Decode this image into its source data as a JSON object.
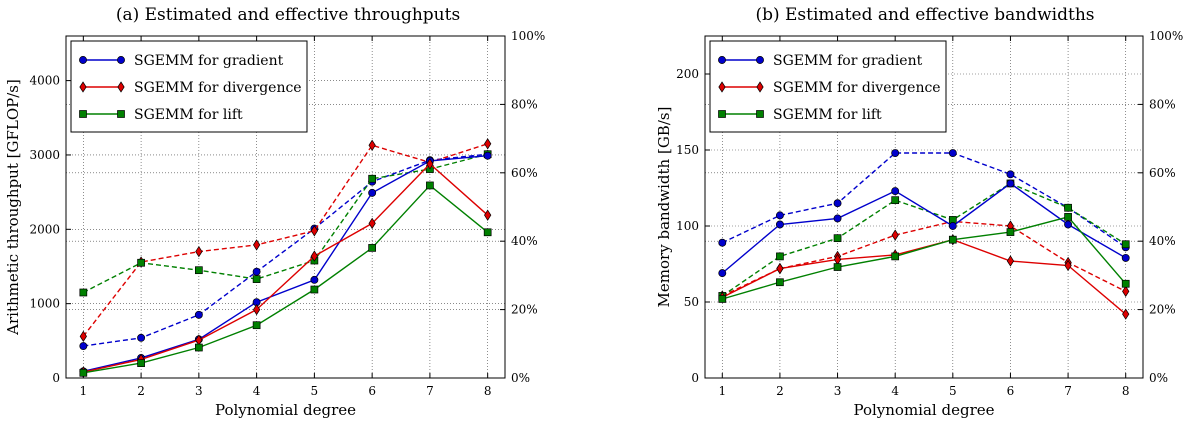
{
  "colors": {
    "gradient": "#0000cc",
    "divergence": "#dd0000",
    "lift": "#008000"
  },
  "chart_data": [
    {
      "type": "line",
      "title": "(a) Estimated and effective throughputs",
      "xlabel": "Polynomial degree",
      "ylabel": "Arithmetic throughput [GFLOP/s]",
      "x": [
        1,
        2,
        3,
        4,
        5,
        6,
        7,
        8
      ],
      "xlim": [
        0.7,
        8.3
      ],
      "ylim": [
        0,
        4600
      ],
      "yticks": [
        0,
        1000,
        2000,
        3000,
        4000
      ],
      "y2ticks": [
        "0%",
        "20%",
        "40%",
        "60%",
        "80%",
        "100%"
      ],
      "grid": true,
      "legend_position": "top-left",
      "series": [
        {
          "name": "SGEMM for gradient",
          "key": "gradient",
          "marker": "circle",
          "style": "solid",
          "values": [
            90,
            270,
            520,
            1020,
            1320,
            2490,
            2920,
            2990
          ]
        },
        {
          "name": "SGEMM for divergence",
          "key": "divergence",
          "marker": "diamond",
          "style": "solid",
          "values": [
            80,
            250,
            510,
            920,
            1640,
            2080,
            2880,
            2190
          ]
        },
        {
          "name": "SGEMM for lift",
          "key": "lift",
          "marker": "square",
          "style": "solid",
          "values": [
            70,
            200,
            410,
            710,
            1190,
            1750,
            2590,
            1960
          ]
        },
        {
          "key": "gradient",
          "marker": "circle",
          "style": "dashed",
          "values": [
            430,
            540,
            850,
            1430,
            2010,
            2640,
            2930,
            3010
          ]
        },
        {
          "key": "divergence",
          "marker": "diamond",
          "style": "dashed",
          "values": [
            560,
            1560,
            1700,
            1790,
            1980,
            3130,
            2900,
            3150
          ]
        },
        {
          "key": "lift",
          "marker": "square",
          "style": "dashed",
          "values": [
            1150,
            1550,
            1450,
            1330,
            1580,
            2680,
            2810,
            3010
          ]
        }
      ]
    },
    {
      "type": "line",
      "title": "(b) Estimated and effective bandwidths",
      "xlabel": "Polynomial degree",
      "ylabel": "Memory bandwidth [GB/s]",
      "x": [
        1,
        2,
        3,
        4,
        5,
        6,
        7,
        8
      ],
      "xlim": [
        0.7,
        8.3
      ],
      "ylim": [
        0,
        225
      ],
      "yticks": [
        0,
        50,
        100,
        150,
        200
      ],
      "y2ticks": [
        "0%",
        "20%",
        "40%",
        "60%",
        "80%",
        "100%"
      ],
      "grid": true,
      "legend_position": "top-left",
      "series": [
        {
          "name": "SGEMM for gradient",
          "key": "gradient",
          "marker": "circle",
          "style": "solid",
          "values": [
            69,
            101,
            105,
            123,
            100,
            128,
            101,
            79
          ]
        },
        {
          "name": "SGEMM for divergence",
          "key": "divergence",
          "marker": "diamond",
          "style": "solid",
          "values": [
            53,
            72,
            78,
            81,
            91,
            77,
            74,
            42
          ]
        },
        {
          "name": "SGEMM for lift",
          "key": "lift",
          "marker": "square",
          "style": "solid",
          "values": [
            52,
            63,
            73,
            80,
            91,
            96,
            106,
            62
          ]
        },
        {
          "key": "gradient",
          "marker": "circle",
          "style": "dashed",
          "values": [
            89,
            107,
            115,
            148,
            148,
            134,
            112,
            86
          ]
        },
        {
          "key": "divergence",
          "marker": "diamond",
          "style": "dashed",
          "values": [
            54,
            72,
            80,
            94,
            103,
            100,
            76,
            57
          ]
        },
        {
          "key": "lift",
          "marker": "square",
          "style": "dashed",
          "values": [
            54,
            80,
            92,
            117,
            104,
            128,
            112,
            88
          ]
        }
      ]
    }
  ]
}
